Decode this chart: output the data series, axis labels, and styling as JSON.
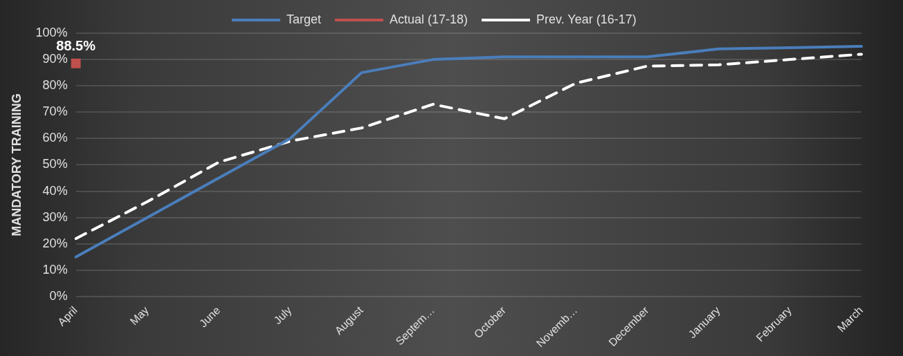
{
  "chart_data": {
    "type": "line",
    "ylabel": "MANDATORY TRAINING",
    "categories": [
      "April",
      "May",
      "June",
      "July",
      "August",
      "Septem…",
      "October",
      "Novemb…",
      "December",
      "January",
      "February",
      "March"
    ],
    "series": [
      {
        "name": "Target",
        "color": "#4a7ebb",
        "marker": "none",
        "line_style": "solid",
        "values": [
          15,
          30,
          45,
          60,
          85,
          90,
          91,
          91,
          91,
          94,
          94.5,
          95
        ]
      },
      {
        "name": "Actual (17-18)",
        "color": "#c0504d",
        "marker": "square",
        "line_style": "solid",
        "values": [
          88.5,
          null,
          null,
          null,
          null,
          null,
          null,
          null,
          null,
          null,
          null,
          null
        ],
        "value_labels": [
          "88.5%",
          null,
          null,
          null,
          null,
          null,
          null,
          null,
          null,
          null,
          null,
          null
        ]
      },
      {
        "name": "Prev. Year (16-17)",
        "color": "#ffffff",
        "marker": "none",
        "line_style": "dashed",
        "values": [
          22,
          36,
          51,
          59,
          64,
          73,
          67.5,
          81,
          87.5,
          88,
          90,
          92
        ]
      }
    ],
    "ylim": [
      0,
      100
    ],
    "yticks": [
      {
        "value": 0,
        "label": "0%"
      },
      {
        "value": 10,
        "label": "10%"
      },
      {
        "value": 20,
        "label": "20%"
      },
      {
        "value": 30,
        "label": "30%"
      },
      {
        "value": 40,
        "label": "40%"
      },
      {
        "value": 50,
        "label": "50%"
      },
      {
        "value": 60,
        "label": "60%"
      },
      {
        "value": 70,
        "label": "70%"
      },
      {
        "value": 80,
        "label": "80%"
      },
      {
        "value": 90,
        "label": "90%"
      },
      {
        "value": 100,
        "label": "100%"
      }
    ],
    "grid": "y",
    "legend": "top"
  }
}
